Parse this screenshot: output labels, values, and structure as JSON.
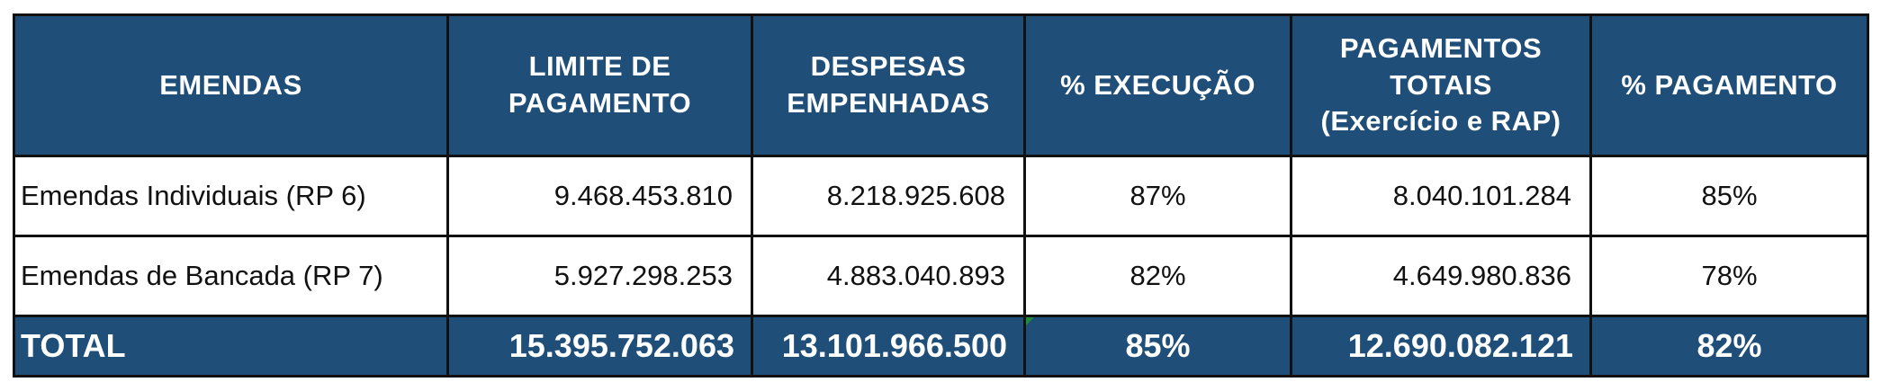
{
  "table": {
    "headers": [
      [
        "EMENDAS"
      ],
      [
        "LIMITE DE",
        "PAGAMENTO"
      ],
      [
        "DESPESAS",
        "EMPENHADAS"
      ],
      [
        "% EXECUÇÃO"
      ],
      [
        "PAGAMENTOS",
        "TOTAIS",
        "(Exercício e RAP)"
      ],
      [
        "% PAGAMENTO"
      ]
    ],
    "rows": [
      {
        "label": "Emendas Individuais (RP 6)",
        "limite": "9.468.453.810",
        "despesas": "8.218.925.608",
        "execucao": "87%",
        "pagamentos": "8.040.101.284",
        "pagamento_pct": "85%"
      },
      {
        "label": "Emendas de Bancada (RP 7)",
        "limite": "5.927.298.253",
        "despesas": "4.883.040.893",
        "execucao": "82%",
        "pagamentos": "4.649.980.836",
        "pagamento_pct": "78%"
      }
    ],
    "total": {
      "label": "TOTAL",
      "limite": "15.395.752.063",
      "despesas": "13.101.966.500",
      "execucao": "85%",
      "pagamentos": "12.690.082.121",
      "pagamento_pct": "82%"
    }
  },
  "colors": {
    "header_bg": "#1f4e79",
    "header_text": "#ffffff",
    "body_bg": "#ffffff",
    "border": "#111111",
    "comment_marker": "#1e8c3a"
  }
}
